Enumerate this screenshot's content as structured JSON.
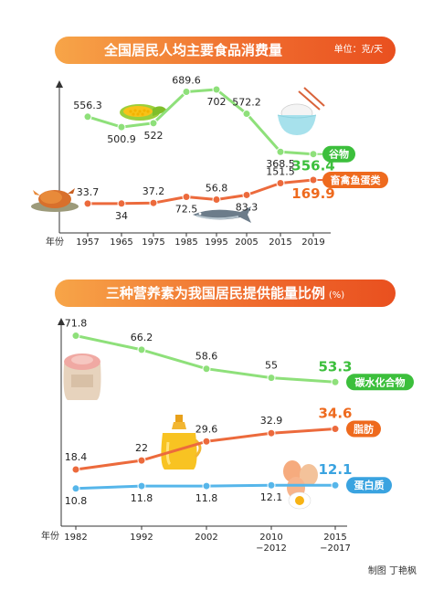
{
  "colors": {
    "green": "#8ee07a",
    "green_dark": "#3cbf3c",
    "orange": "#ec6a3c",
    "orange_dark": "#ee6a1e",
    "blue": "#56b6ea",
    "axis": "#333333",
    "banner_start": "#f7a548",
    "banner_end": "#e9501f"
  },
  "credit": "制图  丁艳枫",
  "chart_data": [
    {
      "type": "line",
      "title": "全国居民人均主要食品消费量",
      "unit": "单位：克/天",
      "xlabel": "年份",
      "categories": [
        "1957",
        "1965",
        "1975",
        "1985",
        "1995",
        "2005",
        "2015",
        "2019"
      ],
      "grid": false,
      "legend": "end-of-line labels",
      "series": [
        {
          "name": "谷物",
          "color": "#8ee07a",
          "values": [
            556.3,
            500.9,
            522,
            689.6,
            702,
            572.2,
            368.5,
            356.4
          ],
          "labels": [
            "556.3",
            "500.9",
            "522",
            "689.6",
            "702",
            "572.2",
            "368.5",
            "356.4"
          ],
          "label_pos": [
            "above",
            "below",
            "below",
            "above",
            "below",
            "above",
            "below",
            "right"
          ]
        },
        {
          "name": "畜禽鱼蛋类",
          "color": "#ec6a3c",
          "values": [
            33.7,
            34,
            37.2,
            72.5,
            56.8,
            83.3,
            151.5,
            169.9
          ],
          "labels": [
            "33.7",
            "34",
            "37.2",
            "72.5",
            "56.8",
            "83.3",
            "151.5",
            "169.9"
          ],
          "label_pos": [
            "above",
            "below",
            "above",
            "below",
            "above",
            "below",
            "above",
            "right"
          ]
        }
      ],
      "icons": [
        "corn-icon",
        "rice-bowl-icon",
        "roast-chicken-icon",
        "fish-icon"
      ]
    },
    {
      "type": "line",
      "title": "三种营养素为我国居民提供能量比例",
      "unit": "(%)",
      "xlabel": "年份",
      "categories": [
        "1982",
        "1992",
        "2002",
        "2010\n−2012",
        "2015\n−2017"
      ],
      "grid": false,
      "legend": "end-of-line labels",
      "series": [
        {
          "name": "碳水化合物",
          "color": "#8ee07a",
          "values": [
            71.8,
            66.2,
            58.6,
            55,
            53.3
          ],
          "labels": [
            "71.8",
            "66.2",
            "58.6",
            "55",
            "53.3"
          ]
        },
        {
          "name": "脂肪",
          "color": "#ec6a3c",
          "values": [
            18.4,
            22,
            29.6,
            32.9,
            34.6
          ],
          "labels": [
            "18.4",
            "22",
            "29.6",
            "32.9",
            "34.6"
          ]
        },
        {
          "name": "蛋白质",
          "color": "#56b6ea",
          "values": [
            10.8,
            11.8,
            11.8,
            12.1,
            12.1
          ],
          "labels": [
            "10.8",
            "11.8",
            "11.8",
            "12.1",
            "12.1"
          ]
        }
      ],
      "icons": [
        "flour-sack-icon",
        "oil-bottle-icon",
        "eggs-icon"
      ]
    }
  ]
}
